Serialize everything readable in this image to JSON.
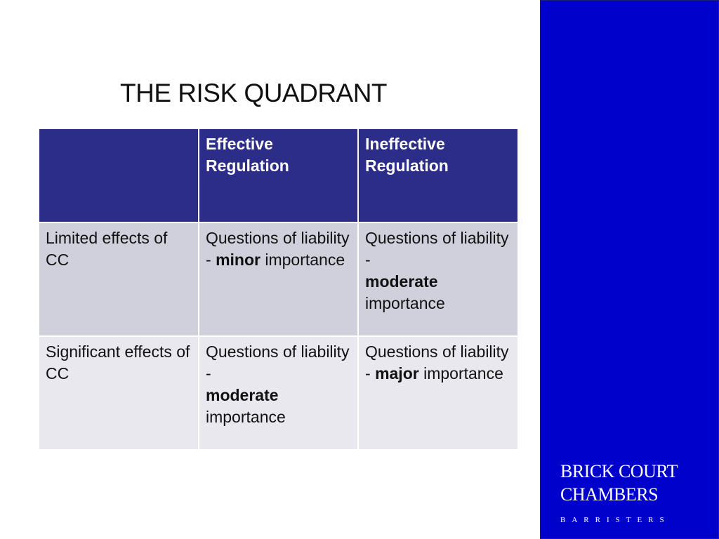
{
  "title": "THE RISK QUADRANT",
  "table": {
    "headers": [
      "",
      "Effective Regulation",
      "Ineffective Regulation"
    ],
    "rows": [
      {
        "label": "Limited effects of CC",
        "cells": [
          [
            {
              "text": "Questions of liability - ",
              "bold": false
            },
            {
              "text": "minor",
              "bold": true
            },
            {
              "text": " importance",
              "bold": false
            }
          ],
          [
            {
              "text": "Questions of liability - ",
              "bold": false
            },
            {
              "text": "moderate",
              "bold": true
            },
            {
              "text": " importance",
              "bold": false
            }
          ]
        ]
      },
      {
        "label": "Significant effects of CC",
        "cells": [
          [
            {
              "text": "Questions of liability - ",
              "bold": false
            },
            {
              "text": "moderate",
              "bold": true
            },
            {
              "text": " importance",
              "bold": false
            }
          ],
          [
            {
              "text": "Questions of liability - ",
              "bold": false
            },
            {
              "text": "major",
              "bold": true
            },
            {
              "text": " importance",
              "bold": false
            }
          ]
        ]
      }
    ]
  },
  "brand": {
    "line1": "BRICK COURT",
    "line2": "CHAMBERS",
    "line3": "BARRISTERS"
  },
  "colors": {
    "header": "#2B2D88",
    "row1": "#D0D0DC",
    "row2": "#E8E8EE",
    "sidebar": "#0101CC"
  }
}
